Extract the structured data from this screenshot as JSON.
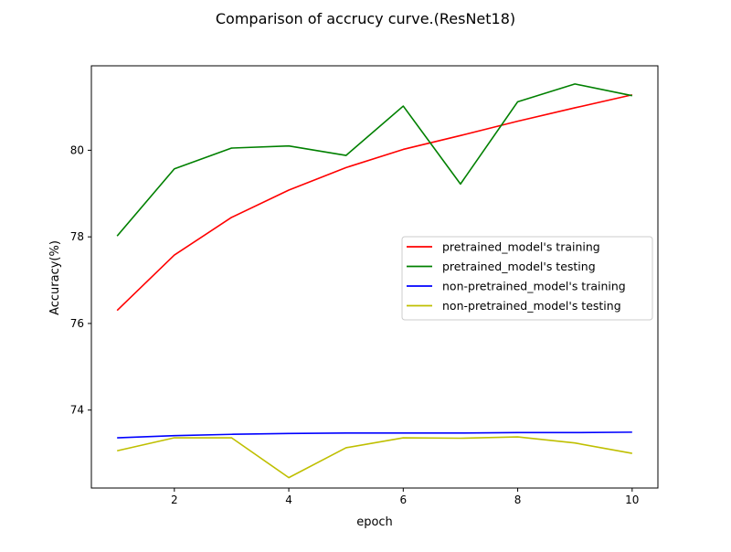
{
  "chart_data": {
    "type": "line",
    "title": "Comparison of accrucy curve.(ResNet18)",
    "xlabel": "epoch",
    "ylabel": "Accuracy(%)",
    "x": [
      1,
      2,
      3,
      4,
      5,
      6,
      7,
      8,
      9,
      10
    ],
    "xlim": [
      0.55,
      10.45
    ],
    "ylim": [
      72.2,
      81.95
    ],
    "xticks": [
      2,
      4,
      6,
      8,
      10
    ],
    "yticks": [
      74,
      76,
      78,
      80
    ],
    "grid": false,
    "legend_position": "center-right",
    "series": [
      {
        "name": "pretrained_model's training",
        "color": "#ff0000",
        "values": [
          76.3,
          77.58,
          78.45,
          79.08,
          79.6,
          80.02,
          80.34,
          80.67,
          80.98,
          81.28
        ]
      },
      {
        "name": "pretrained_model's testing",
        "color": "#008000",
        "values": [
          78.02,
          79.57,
          80.05,
          80.1,
          79.88,
          81.02,
          79.22,
          81.12,
          81.53,
          81.26
        ]
      },
      {
        "name": "non-pretrained_model's training",
        "color": "#0000ff",
        "values": [
          73.36,
          73.41,
          73.44,
          73.46,
          73.47,
          73.47,
          73.47,
          73.48,
          73.48,
          73.49
        ]
      },
      {
        "name": "non-pretrained_model's testing",
        "color": "#bfbf00",
        "values": [
          73.06,
          73.36,
          73.36,
          72.44,
          73.13,
          73.36,
          73.35,
          73.38,
          73.24,
          73.0
        ]
      }
    ]
  }
}
